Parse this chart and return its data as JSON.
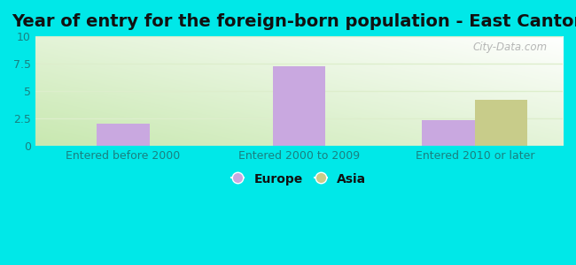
{
  "title": "Year of entry for the foreign-born population - East Canton",
  "categories": [
    "Entered before 2000",
    "Entered 2000 to 2009",
    "Entered 2010 or later"
  ],
  "europe_values": [
    2.0,
    7.3,
    2.3
  ],
  "asia_values": [
    0,
    0,
    4.2
  ],
  "europe_color": "#c9a8e0",
  "asia_color": "#c8cc8a",
  "ylim": [
    0,
    10
  ],
  "yticks": [
    0,
    2.5,
    5,
    7.5,
    10
  ],
  "bar_width": 0.3,
  "bg_outer": "#00e8e8",
  "watermark": "City-Data.com",
  "title_fontsize": 14,
  "tick_fontsize": 9,
  "legend_fontsize": 10,
  "tick_color": "#1a8080",
  "grid_color": "#ddeecc"
}
